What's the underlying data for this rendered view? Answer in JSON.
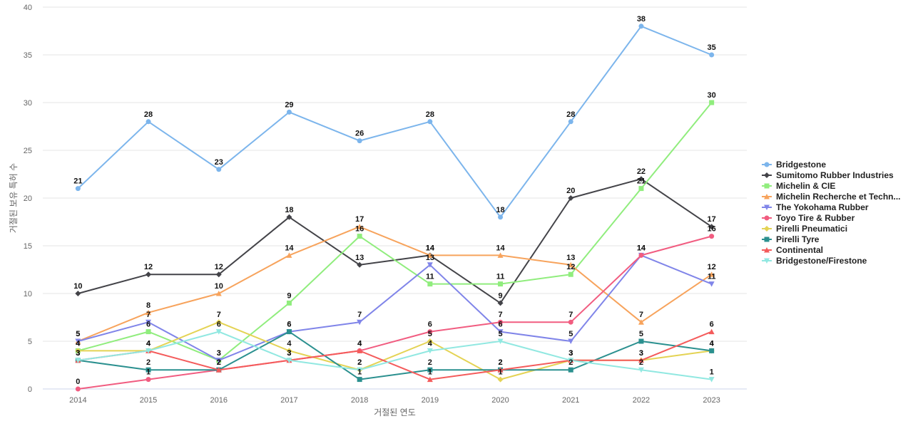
{
  "chart_data": {
    "type": "line",
    "title": "",
    "xlabel": "거절된 연도",
    "ylabel": "거절된 보유 특허 수",
    "x": [
      "2014",
      "2015",
      "2016",
      "2017",
      "2018",
      "2019",
      "2020",
      "2021",
      "2022",
      "2023"
    ],
    "ylim": [
      0,
      40
    ],
    "yticks": [
      0,
      5,
      10,
      15,
      20,
      25,
      30,
      35,
      40
    ],
    "grid": true,
    "legend_position": "right",
    "series": [
      {
        "name": "Bridgestone",
        "color": "#7cb5ec",
        "marker": "circle",
        "values": [
          21,
          28,
          23,
          29,
          26,
          28,
          18,
          28,
          38,
          35
        ]
      },
      {
        "name": "Sumitomo Rubber Industries",
        "color": "#434348",
        "marker": "diamond",
        "values": [
          10,
          12,
          12,
          18,
          13,
          14,
          9,
          20,
          22,
          17
        ]
      },
      {
        "name": "Michelin & CIE",
        "color": "#90ed7d",
        "marker": "square",
        "values": [
          4,
          6,
          3,
          9,
          16,
          11,
          11,
          12,
          21,
          30
        ]
      },
      {
        "name": "Michelin Recherche et Techn...",
        "color": "#f7a35c",
        "marker": "triangle",
        "values": [
          5,
          8,
          10,
          14,
          17,
          14,
          14,
          13,
          7,
          12
        ]
      },
      {
        "name": "The Yokohama Rubber",
        "color": "#8085e9",
        "marker": "triangle-down",
        "values": [
          5,
          7,
          3,
          6,
          7,
          13,
          6,
          5,
          14,
          11
        ]
      },
      {
        "name": "Toyo Tire & Rubber",
        "color": "#f15c80",
        "marker": "circle",
        "values": [
          0,
          1,
          2,
          3,
          4,
          6,
          7,
          7,
          14,
          16
        ]
      },
      {
        "name": "Pirelli Pneumatici",
        "color": "#e4d354",
        "marker": "diamond",
        "values": [
          4,
          4,
          7,
          4,
          2,
          5,
          1,
          3,
          3,
          4
        ]
      },
      {
        "name": "Pirelli Tyre",
        "color": "#2b908f",
        "marker": "square",
        "values": [
          3,
          2,
          2,
          6,
          1,
          2,
          2,
          2,
          5,
          4
        ]
      },
      {
        "name": "Continental",
        "color": "#f45b5b",
        "marker": "triangle",
        "values": [
          3,
          4,
          2,
          3,
          4,
          1,
          2,
          3,
          3,
          6
        ]
      },
      {
        "name": "Bridgestone/Firestone",
        "color": "#91e8e1",
        "marker": "triangle-down",
        "values": [
          3,
          4,
          6,
          3,
          2,
          4,
          5,
          3,
          2,
          1
        ]
      }
    ]
  }
}
